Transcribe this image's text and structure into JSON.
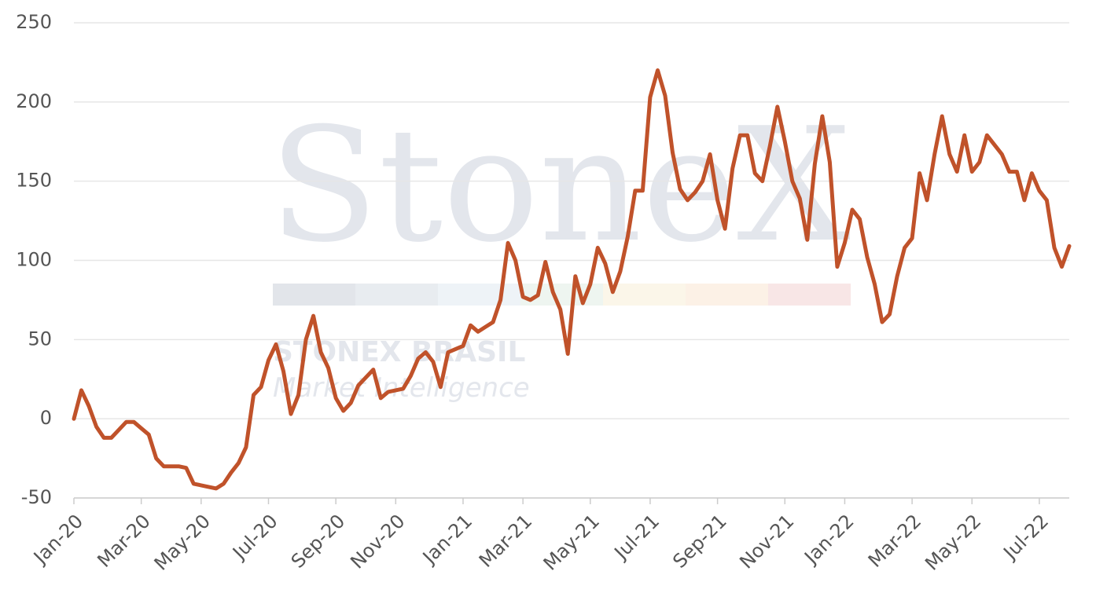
{
  "chart_data": {
    "type": "line",
    "watermark": {
      "brand": "StoneX",
      "company": "STONEX BRASIL",
      "tagline": "Market Intelligence"
    },
    "categories": [
      "Jan-20",
      null,
      null,
      null,
      null,
      null,
      null,
      null,
      null,
      "Mar-20",
      null,
      null,
      null,
      null,
      null,
      null,
      null,
      "May-20",
      null,
      null,
      null,
      null,
      null,
      null,
      null,
      null,
      "Jul-20",
      null,
      null,
      null,
      null,
      null,
      null,
      null,
      null,
      "Sep-20",
      null,
      null,
      null,
      null,
      null,
      null,
      null,
      "Nov-20",
      null,
      null,
      null,
      null,
      null,
      null,
      null,
      null,
      "Jan-21",
      null,
      null,
      null,
      null,
      null,
      null,
      null,
      "Mar-21",
      null,
      null,
      null,
      null,
      null,
      null,
      null,
      null,
      "May-21",
      null,
      null,
      null,
      null,
      null,
      null,
      null,
      "Jul-21",
      null,
      null,
      null,
      null,
      null,
      null,
      null,
      null,
      "Sep-21",
      null,
      null,
      null,
      null,
      null,
      null,
      null,
      null,
      "Nov-21",
      null,
      null,
      null,
      null,
      null,
      null,
      null,
      "Jan-22",
      null,
      null,
      null,
      null,
      null,
      null,
      null,
      null,
      "Mar-22",
      null,
      null,
      null,
      null,
      null,
      null,
      null,
      "May-22",
      null,
      null,
      null,
      null,
      null,
      null,
      null,
      null,
      "Jul-22",
      null,
      null,
      null,
      null
    ],
    "values": [
      0,
      18,
      8,
      -5,
      -12,
      -12,
      -7,
      -2,
      -2,
      -6,
      -10,
      -25,
      -30,
      -30,
      -30,
      -31,
      -41,
      -42,
      -43,
      -44,
      -41,
      -34,
      -28,
      -18,
      15,
      20,
      37,
      47,
      30,
      3,
      15,
      50,
      65,
      42,
      32,
      13,
      5,
      10,
      21,
      26,
      31,
      13,
      17,
      18,
      19,
      27,
      38,
      42,
      36,
      20,
      42,
      44,
      46,
      59,
      55,
      58,
      61,
      75,
      111,
      100,
      77,
      75,
      78,
      99,
      80,
      69,
      41,
      90,
      73,
      85,
      108,
      98,
      80,
      93,
      115,
      144,
      144,
      203,
      220,
      204,
      168,
      145,
      138,
      143,
      150,
      167,
      138,
      120,
      158,
      179,
      179,
      155,
      150,
      172,
      197,
      175,
      150,
      139,
      113,
      161,
      191,
      162,
      96,
      111,
      132,
      126,
      102,
      85,
      61,
      66,
      90,
      108,
      114,
      155,
      138,
      167,
      191,
      167,
      156,
      179,
      156,
      162,
      179,
      173,
      167,
      156,
      156,
      138,
      155,
      144,
      138,
      108,
      96,
      109
    ],
    "color": "#c0522a",
    "ylim": [
      -50,
      250
    ],
    "yticks": [
      -50,
      0,
      50,
      100,
      150,
      200,
      250
    ],
    "grid": true
  }
}
